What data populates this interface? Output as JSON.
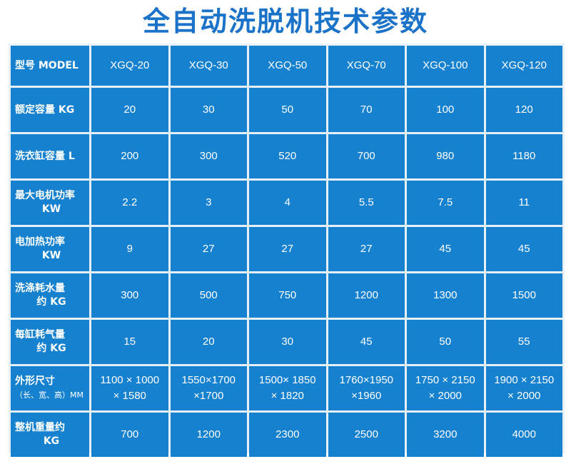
{
  "title": "全自动洗脱机技术参数",
  "header": {
    "label": "型号 MODEL",
    "models": [
      "XGQ-20",
      "XGQ-30",
      "XGQ-50",
      "XGQ-70",
      "XGQ-100",
      "XGQ-120"
    ]
  },
  "rows": [
    {
      "label": [
        "额定容量 KG"
      ],
      "values": [
        "20",
        "30",
        "50",
        "70",
        "100",
        "120"
      ]
    },
    {
      "label": [
        "洗衣缸容量 L"
      ],
      "values": [
        "200",
        "300",
        "520",
        "700",
        "980",
        "1180"
      ]
    },
    {
      "label": [
        "最大电机功率",
        "KW"
      ],
      "values": [
        "2.2",
        "3",
        "4",
        "5.5",
        "7.5",
        "11"
      ]
    },
    {
      "label": [
        "电加热功率",
        "KW"
      ],
      "values": [
        "9",
        "27",
        "27",
        "27",
        "45",
        "45"
      ]
    },
    {
      "label": [
        "洗涤耗水量",
        "约 KG"
      ],
      "values": [
        "300",
        "500",
        "750",
        "1200",
        "1300",
        "1500"
      ]
    },
    {
      "label": [
        "每缸耗气量",
        "约 KG"
      ],
      "values": [
        "15",
        "20",
        "30",
        "45",
        "50",
        "55"
      ]
    },
    {
      "label": [
        "外形尺寸",
        "（长、宽、高）MM"
      ],
      "values": [
        [
          "1100 × 1000",
          "× 1580"
        ],
        [
          "1550×1700",
          "×1700"
        ],
        [
          "1500× 1850",
          "× 1820"
        ],
        [
          "1760×1950",
          "×1960"
        ],
        [
          "1750 × 2150",
          "× 2000"
        ],
        [
          "1900 × 2150",
          "× 2000"
        ]
      ]
    },
    {
      "label": [
        "整机重量约",
        "KG"
      ],
      "values": [
        "700",
        "1200",
        "2300",
        "2500",
        "3200",
        "4000"
      ]
    }
  ]
}
